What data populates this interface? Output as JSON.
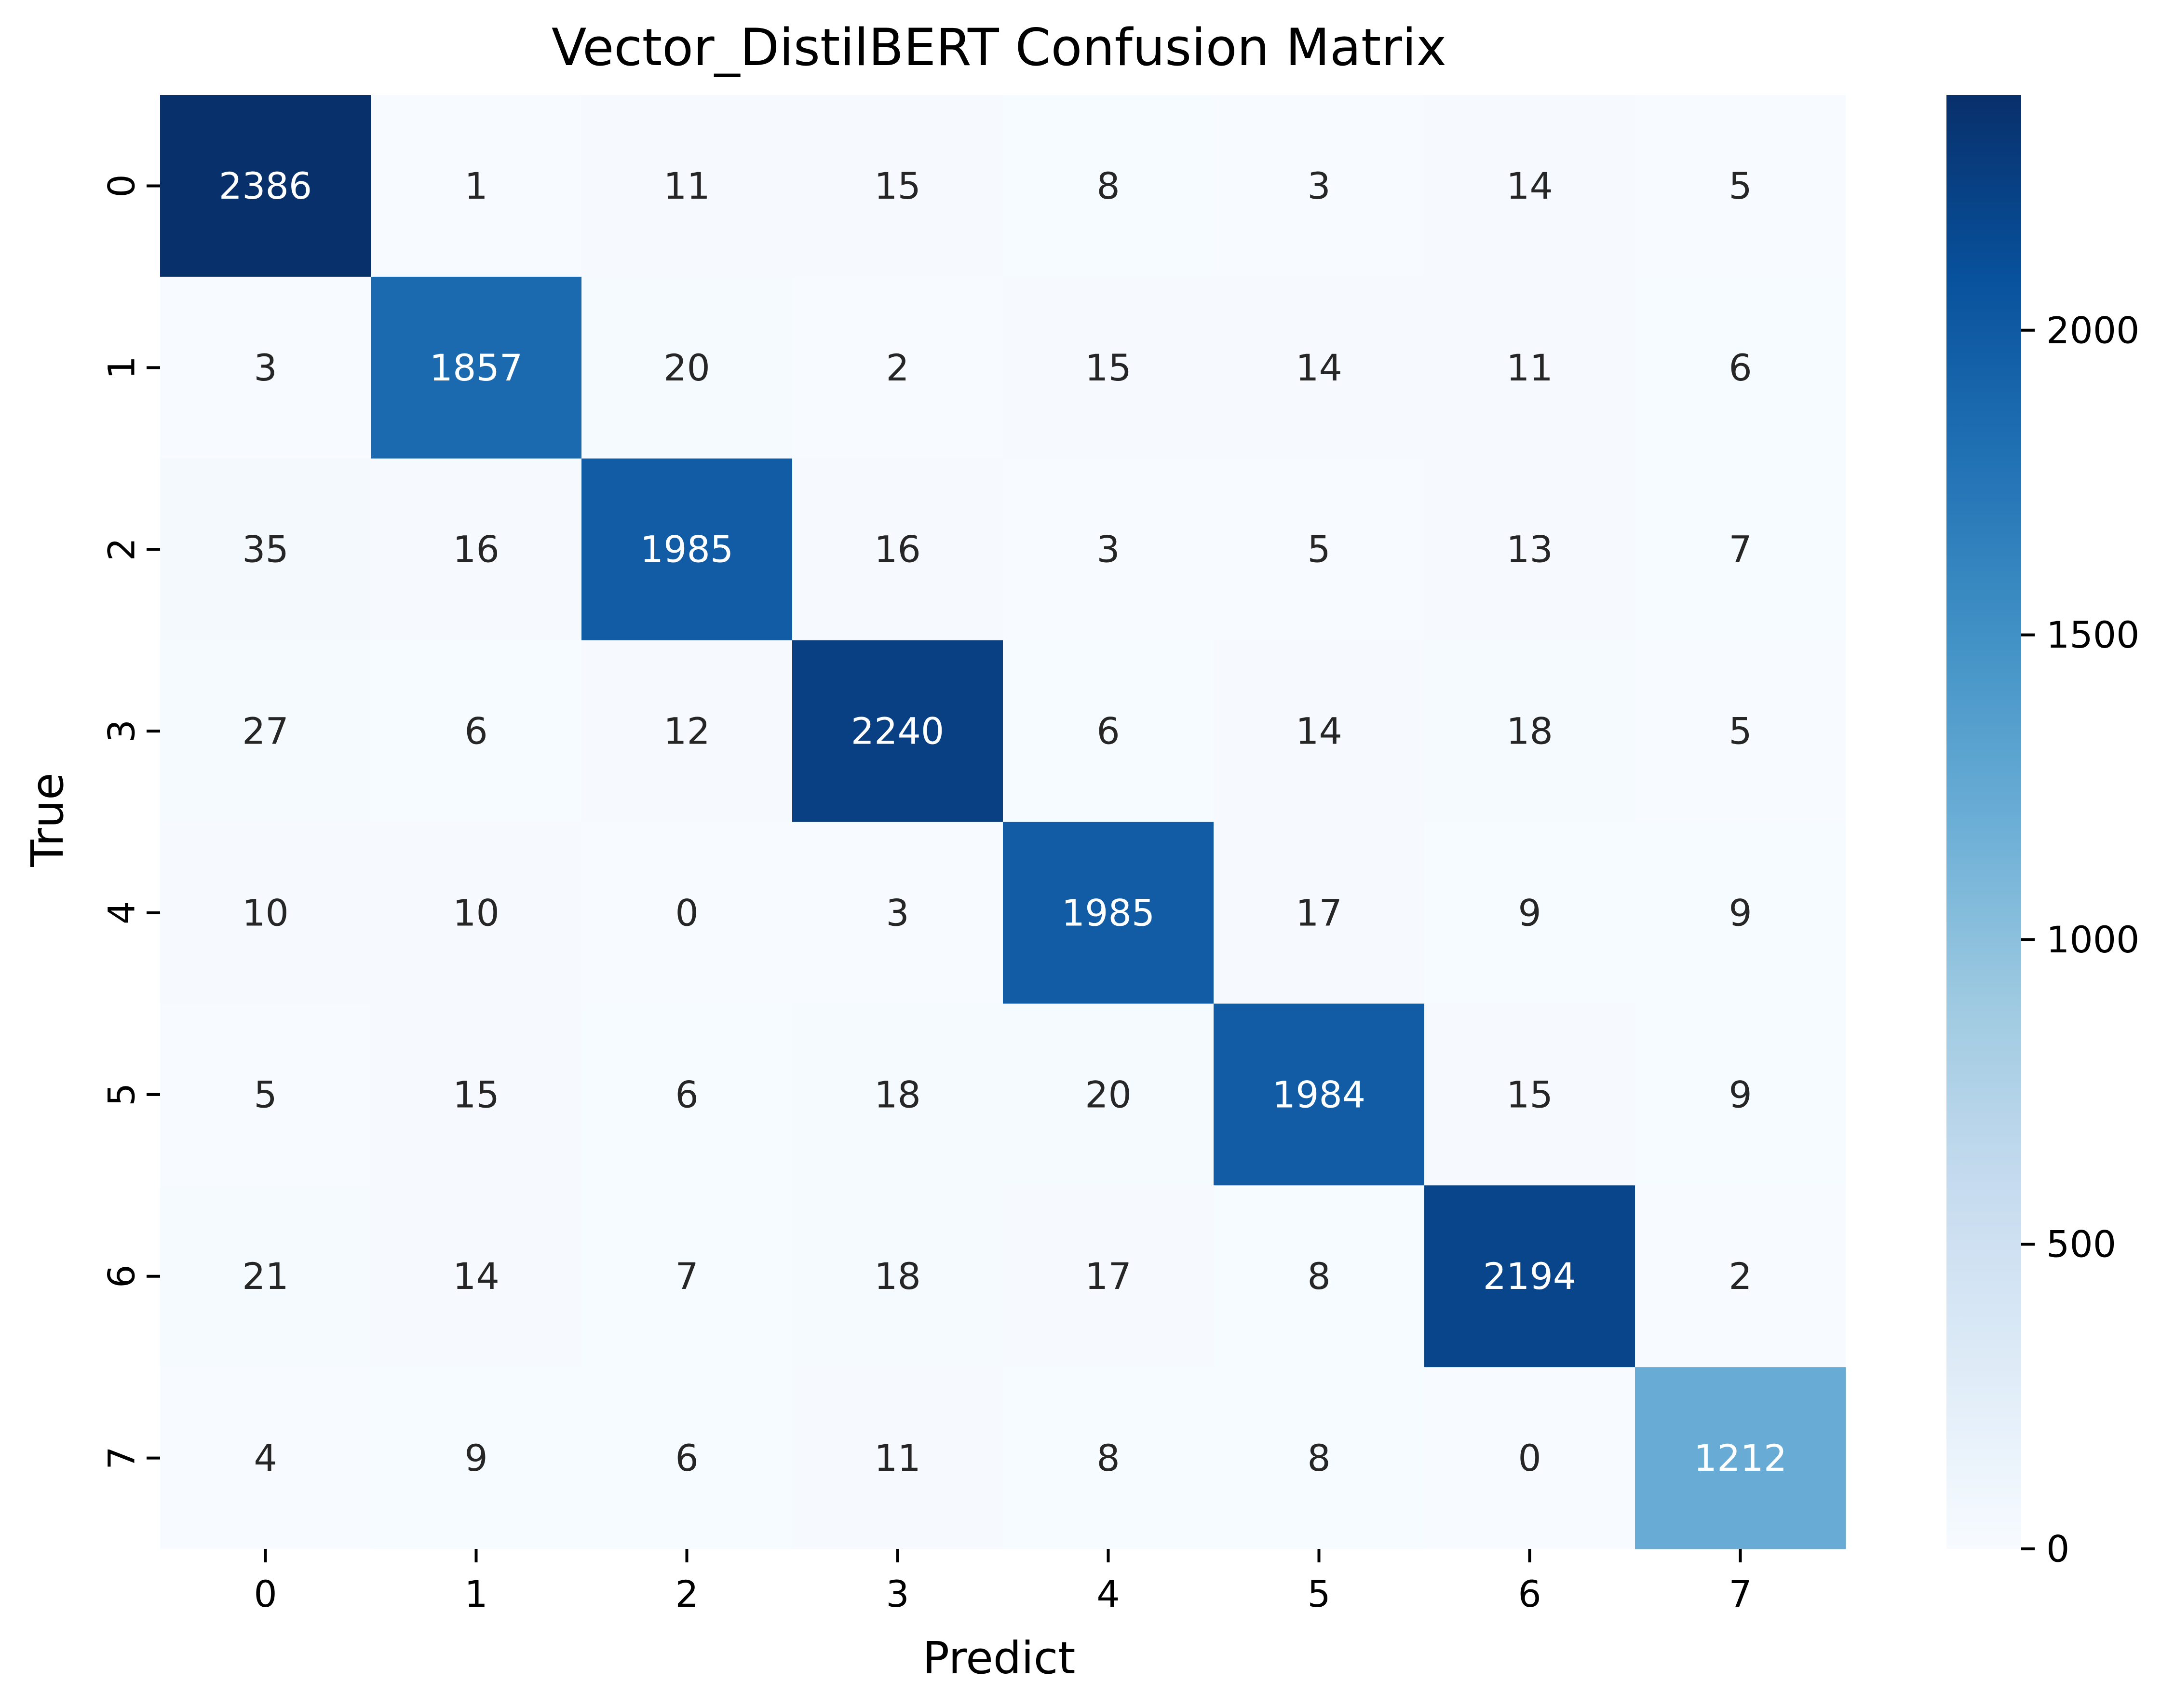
{
  "chart_data": {
    "type": "heatmap",
    "title": "Vector_DistilBERT Confusion Matrix",
    "xlabel": "Predict",
    "ylabel": "True",
    "x_labels": [
      "0",
      "1",
      "2",
      "3",
      "4",
      "5",
      "6",
      "7"
    ],
    "y_labels": [
      "0",
      "1",
      "2",
      "3",
      "4",
      "5",
      "6",
      "7"
    ],
    "values": [
      [
        2386,
        1,
        11,
        15,
        8,
        3,
        14,
        5
      ],
      [
        3,
        1857,
        20,
        2,
        15,
        14,
        11,
        6
      ],
      [
        35,
        16,
        1985,
        16,
        3,
        5,
        13,
        7
      ],
      [
        27,
        6,
        12,
        2240,
        6,
        14,
        18,
        5
      ],
      [
        10,
        10,
        0,
        3,
        1985,
        17,
        9,
        9
      ],
      [
        5,
        15,
        6,
        18,
        20,
        1984,
        15,
        9
      ],
      [
        21,
        14,
        7,
        18,
        17,
        8,
        2194,
        2
      ],
      [
        4,
        9,
        6,
        11,
        8,
        8,
        0,
        1212
      ]
    ],
    "colormap": "Blues",
    "colorbar": {
      "range": [
        0,
        2386
      ],
      "ticks": [
        0,
        500,
        1000,
        1500,
        2000
      ]
    },
    "annotation_colors": {
      "dark_cell": "#ffffff",
      "light_cell": "#262626"
    }
  }
}
